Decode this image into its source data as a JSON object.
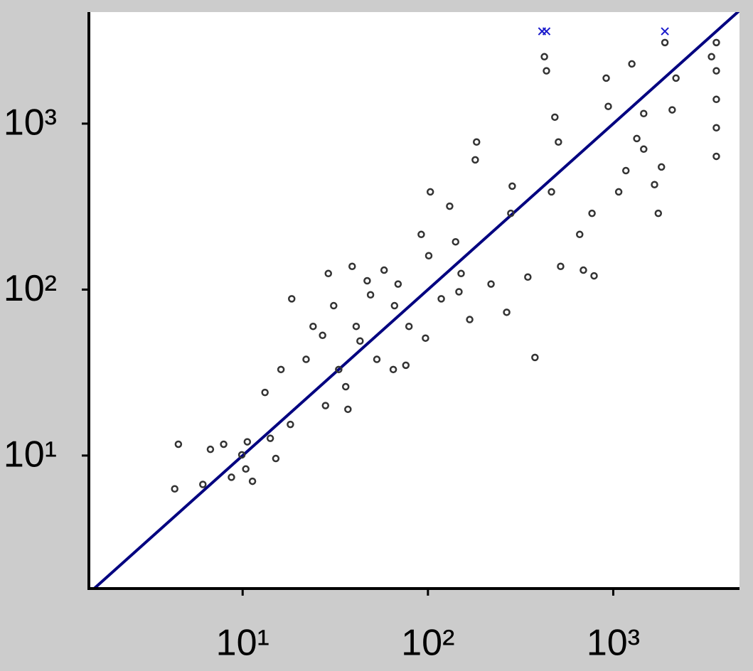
{
  "chart_data": {
    "type": "scatter",
    "log_x": true,
    "log_y": true,
    "xlim": [
      1.48,
      4800
    ],
    "ylim": [
      1.58,
      4700
    ],
    "xticks": [
      {
        "value": 10,
        "label": "10¹"
      },
      {
        "value": 100,
        "label": "10²"
      },
      {
        "value": 1000,
        "label": "10³"
      }
    ],
    "yticks": [
      {
        "value": 10,
        "label": "10¹"
      },
      {
        "value": 100,
        "label": "10²"
      },
      {
        "value": 1000,
        "label": "10³"
      }
    ],
    "grid": false,
    "reference_line": {
      "kind": "identity",
      "color": "#000080"
    },
    "series": [
      {
        "color": "#333333",
        "marker": "o",
        "x": [
          4.3,
          4.5,
          6.1,
          6.7,
          7.9,
          8.7,
          9.9,
          10.4,
          11.3,
          10.6,
          13.2,
          14.1,
          15.1,
          16.1,
          18.1,
          18.4,
          22,
          24,
          27,
          28,
          29,
          31,
          33,
          36,
          37,
          39,
          41,
          43,
          47,
          49,
          53,
          58,
          65,
          66,
          69,
          76,
          79,
          92,
          97,
          103,
          101,
          118,
          131,
          141,
          147,
          151,
          168,
          180,
          183,
          219,
          266,
          280,
          285,
          346,
          378,
          425,
          436,
          464,
          484,
          506,
          520,
          659,
          690,
          768,
          788,
          916,
          940,
          1070,
          1170,
          1260,
          1340,
          1460,
          1460,
          1670,
          1750,
          1820,
          1900,
          2080,
          2180,
          3600,
          3600,
          3600,
          3600,
          3600,
          3390
        ],
        "values": [
          6.3,
          11.7,
          6.7,
          10.9,
          11.7,
          7.4,
          10.1,
          8.3,
          7.0,
          12.1,
          24,
          12.7,
          9.6,
          33,
          15.4,
          88,
          38,
          60,
          53,
          20,
          125,
          80,
          33,
          26,
          19,
          138,
          60,
          49,
          113,
          93,
          38,
          131,
          33,
          80,
          108,
          35,
          60,
          215,
          51,
          388,
          160,
          88,
          318,
          194,
          97,
          125,
          66,
          605,
          775,
          108,
          73,
          288,
          420,
          119,
          39,
          2530,
          2080,
          388,
          1094,
          775,
          138,
          215,
          131,
          288,
          121,
          1880,
          1270,
          388,
          521,
          2290,
          813,
          1150,
          702,
          429,
          288,
          548,
          3080,
          1210,
          1880,
          3080,
          1400,
          635,
          2080,
          944,
          2530
        ]
      },
      {
        "color": "#1a1acc",
        "marker": "x",
        "x": [
          413,
          436,
          1900
        ],
        "values": [
          3600,
          3600,
          3600
        ]
      }
    ]
  }
}
